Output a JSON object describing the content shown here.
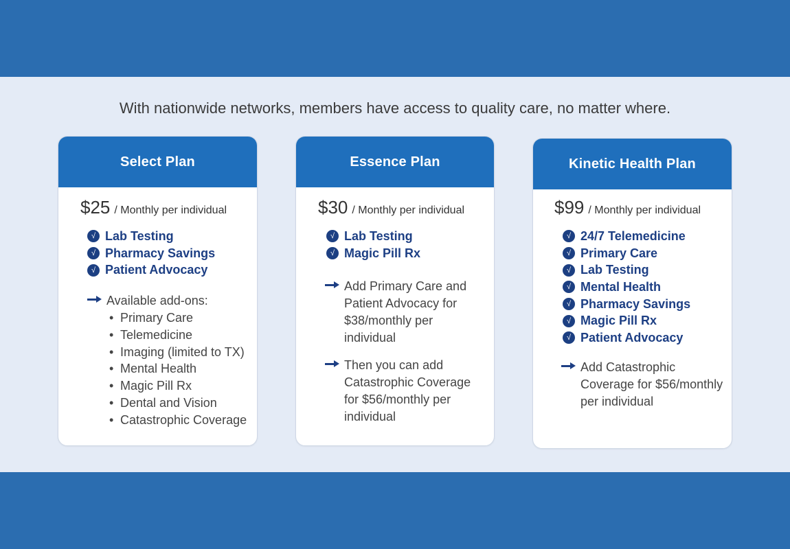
{
  "tagline": "With nationwide networks, members have access to quality care, no matter where.",
  "colors": {
    "band": "#2b6db0",
    "background": "#e4ebf6",
    "card_header": "#1f6fbc",
    "feature_text": "#1d3f84",
    "check_badge": "#1c3f82"
  },
  "icons": {
    "feature": "check-circle-icon",
    "note": "arrow-right-icon",
    "addon": "bullet-dot"
  },
  "plans": [
    {
      "name": "Select Plan",
      "price": "$25",
      "price_unit": "/ Monthly per individual",
      "features": [
        "Lab Testing",
        "Pharmacy Savings",
        "Patient Advocacy"
      ],
      "addons_label": "Available add-ons:",
      "addons": [
        "Primary Care",
        "Telemedicine",
        "Imaging (limited to TX)",
        "Mental Health",
        "Magic Pill Rx",
        "Dental and Vision",
        "Catastrophic Coverage"
      ]
    },
    {
      "name": "Essence Plan",
      "price": "$30",
      "price_unit": "/ Monthly per individual",
      "features": [
        "Lab Testing",
        "Magic Pill Rx"
      ],
      "notes": [
        [
          "Add Primary Care and",
          "Patient Advocacy for",
          "$38/monthly per individual"
        ],
        [
          "Then you can add",
          "Catastrophic Coverage",
          "for $56/monthly per",
          "individual"
        ]
      ]
    },
    {
      "name": "Kinetic Health Plan",
      "price": "$99",
      "price_unit": "/ Monthly per individual",
      "features": [
        "24/7 Telemedicine",
        "Primary Care",
        "Lab Testing",
        "Mental Health",
        "Pharmacy Savings",
        "Magic Pill Rx",
        "Patient Advocacy"
      ],
      "notes": [
        [
          "Add Catastrophic",
          "Coverage for $56/monthly",
          "per individual"
        ]
      ]
    }
  ]
}
